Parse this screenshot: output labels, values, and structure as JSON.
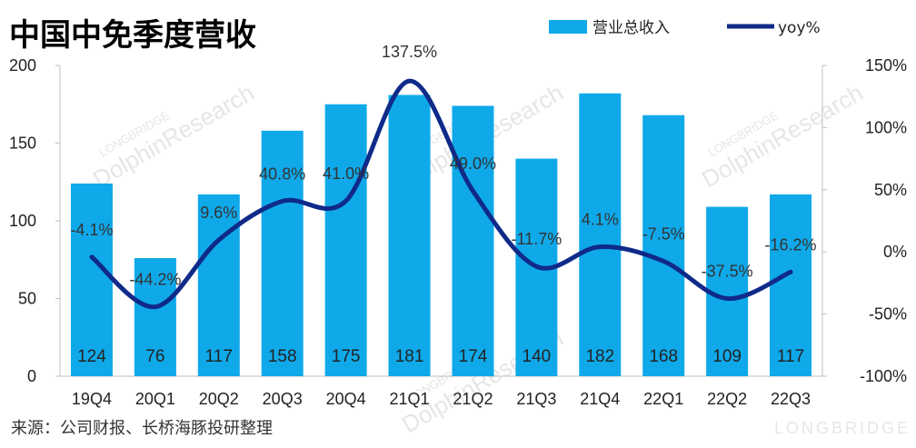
{
  "title": "中国中免季度营收",
  "source": "来源：公司财报、长桥海豚投研整理",
  "watermark": {
    "brand": "LONGBRIDGE",
    "name": "DolphinResearch"
  },
  "colors": {
    "bar": "#0fa9ea",
    "line": "#0f2a88",
    "axis": "#bfbfbf"
  },
  "chart_data": {
    "type": "bar",
    "categories": [
      "19Q4",
      "20Q1",
      "20Q2",
      "20Q3",
      "20Q4",
      "21Q1",
      "21Q2",
      "21Q3",
      "21Q4",
      "22Q1",
      "22Q2",
      "22Q3"
    ],
    "series": [
      {
        "name": "营业总收入",
        "type": "bar",
        "axis": "left",
        "values": [
          124,
          76,
          117,
          158,
          175,
          181,
          174,
          140,
          182,
          168,
          109,
          117
        ],
        "labels": [
          "124",
          "76",
          "117",
          "158",
          "175",
          "181",
          "174",
          "140",
          "182",
          "168",
          "109",
          "117"
        ]
      },
      {
        "name": "yoy%",
        "type": "line",
        "axis": "right",
        "values": [
          -4.1,
          -44.2,
          9.6,
          40.8,
          41.0,
          137.5,
          49.0,
          -11.7,
          4.1,
          -7.5,
          -37.5,
          -16.2
        ],
        "labels": [
          "-4.1%",
          "-44.2%",
          "9.6%",
          "40.8%",
          "41.0%",
          "137.5%",
          "49.0%",
          "-11.7%",
          "4.1%",
          "-7.5%",
          "-37.5%",
          "-16.2%"
        ]
      }
    ],
    "y_left": {
      "min": 0,
      "max": 200,
      "ticks": [
        "0",
        "50",
        "100",
        "150",
        "200"
      ]
    },
    "y_right": {
      "min": -100,
      "max": 150,
      "ticks": [
        "-100%",
        "-50%",
        "0%",
        "50%",
        "100%",
        "150%"
      ]
    },
    "legend": {
      "position": "top-right",
      "items": [
        "营业总收入",
        "yoy%"
      ]
    },
    "grid": false
  }
}
